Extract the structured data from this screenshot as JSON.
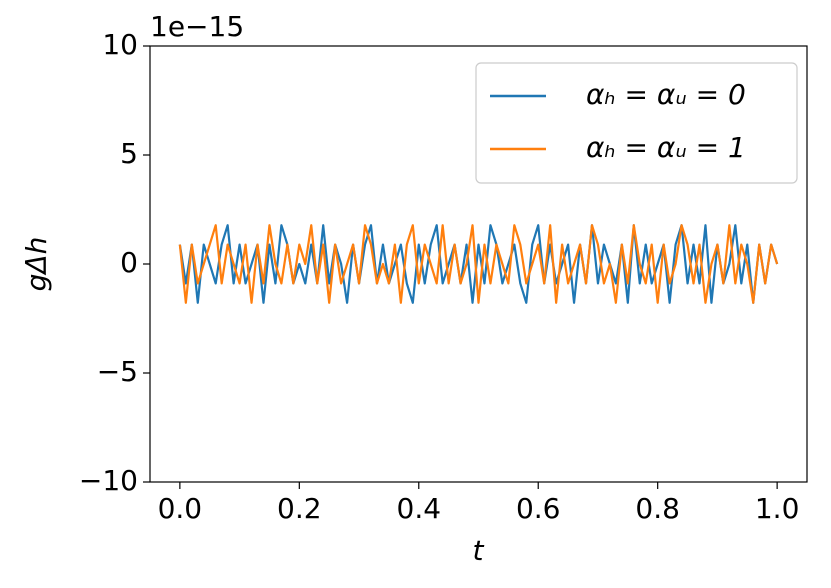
{
  "chart_data": {
    "type": "line",
    "offset_text": "1e−15",
    "xlabel": "t",
    "ylabel": "gΔh",
    "x": [
      0,
      0.01,
      0.02,
      0.03,
      0.04,
      0.05,
      0.06,
      0.07,
      0.08,
      0.09,
      0.1,
      0.11,
      0.12,
      0.13,
      0.14,
      0.15,
      0.16,
      0.17,
      0.18,
      0.19,
      0.2,
      0.21,
      0.22,
      0.23,
      0.24,
      0.25,
      0.26,
      0.27,
      0.28,
      0.29,
      0.3,
      0.31,
      0.32,
      0.33,
      0.34,
      0.35,
      0.36,
      0.37,
      0.38,
      0.39,
      0.4,
      0.41,
      0.42,
      0.43,
      0.44,
      0.45,
      0.46,
      0.47,
      0.48,
      0.49,
      0.5,
      0.51,
      0.52,
      0.53,
      0.54,
      0.55,
      0.56,
      0.57,
      0.58,
      0.59,
      0.6,
      0.61,
      0.62,
      0.63,
      0.64,
      0.65,
      0.66,
      0.67,
      0.68,
      0.69,
      0.7,
      0.71,
      0.72,
      0.73,
      0.74,
      0.75,
      0.76,
      0.77,
      0.78,
      0.79,
      0.8,
      0.81,
      0.82,
      0.83,
      0.84,
      0.85,
      0.86,
      0.87,
      0.88,
      0.89,
      0.9,
      0.91,
      0.92,
      0.93,
      0.94,
      0.95,
      0.96,
      0.97,
      0.98,
      0.99,
      1
    ],
    "series": [
      {
        "name": "αₕ = αᵤ = 0",
        "color": "#1f77b4",
        "values": [
          0.89,
          -0.89,
          0.89,
          -1.78,
          0.89,
          0,
          -0.89,
          0.89,
          1.78,
          -0.89,
          0.89,
          -0.89,
          0,
          0.89,
          -1.78,
          0.89,
          -0.89,
          1.78,
          0.89,
          -0.89,
          0,
          -0.89,
          0.89,
          -0.89,
          1.78,
          -0.89,
          0.89,
          0,
          -1.78,
          0.89,
          -0.89,
          0.89,
          1.78,
          -0.89,
          0.89,
          -0.89,
          0,
          0.89,
          -0.89,
          -1.78,
          0.89,
          -0.89,
          0.89,
          1.78,
          -0.89,
          0,
          0.89,
          -0.89,
          0.89,
          -1.78,
          0.89,
          -0.89,
          1.78,
          0.89,
          -0.89,
          0,
          0.89,
          -0.89,
          -1.78,
          0.89,
          1.78,
          -0.89,
          0.89,
          -0.89,
          0,
          0.89,
          -1.78,
          0.89,
          -0.89,
          1.78,
          -0.89,
          0.89,
          0,
          -0.89,
          0.89,
          -1.78,
          1.78,
          -0.89,
          0.89,
          -0.89,
          0,
          0.89,
          -1.78,
          0.89,
          1.78,
          -0.89,
          0.89,
          -0.89,
          1.78,
          -1.78,
          0.89,
          -0.89,
          0,
          1.78,
          -0.89,
          0.89,
          -1.78,
          0.89,
          -0.89,
          0.89,
          0
        ]
      },
      {
        "name": "αₕ = αᵤ = 1",
        "color": "#ff7f0e",
        "values": [
          0.89,
          -1.78,
          0.89,
          -0.89,
          0,
          0.89,
          1.78,
          -0.89,
          0.89,
          0,
          -0.89,
          0.89,
          -1.78,
          0.89,
          -0.89,
          1.78,
          0,
          -0.89,
          0.89,
          -0.89,
          0.89,
          0,
          1.78,
          -0.89,
          0.89,
          -1.78,
          0.89,
          -0.89,
          0,
          0.89,
          -0.89,
          1.78,
          0.89,
          -0.89,
          0,
          -0.89,
          0.89,
          -1.78,
          0.89,
          1.78,
          -0.89,
          0.89,
          0,
          -0.89,
          1.78,
          -0.89,
          0.89,
          -0.89,
          0,
          1.78,
          -1.78,
          0.89,
          -0.89,
          0.89,
          0,
          -0.89,
          1.78,
          0.89,
          -0.89,
          0,
          0.89,
          -0.89,
          1.78,
          -1.78,
          0.89,
          -0.89,
          0,
          0.89,
          -0.89,
          1.78,
          0.89,
          -0.89,
          0,
          -1.78,
          0.89,
          -0.89,
          1.78,
          0,
          -0.89,
          0.89,
          -1.78,
          0.89,
          -0.89,
          0,
          1.78,
          0.89,
          -0.89,
          0.89,
          -1.78,
          0,
          0.89,
          -0.89,
          1.78,
          -0.89,
          0.89,
          0,
          -1.78,
          0.89,
          -0.89,
          0.89,
          0
        ]
      }
    ],
    "xlim": [
      -0.05,
      1.05
    ],
    "xticks": [
      {
        "value": 0,
        "label": "0.0"
      },
      0.2,
      0.4,
      0.6,
      0.8,
      {
        "value": 1,
        "label": "1.0"
      }
    ],
    "ylim": [
      -10,
      10
    ],
    "yticks": [
      {
        "value": -10,
        "label": "−10"
      },
      {
        "value": -5,
        "label": "−5"
      },
      0,
      5,
      10
    ],
    "grid": false,
    "legend": "upper right"
  }
}
